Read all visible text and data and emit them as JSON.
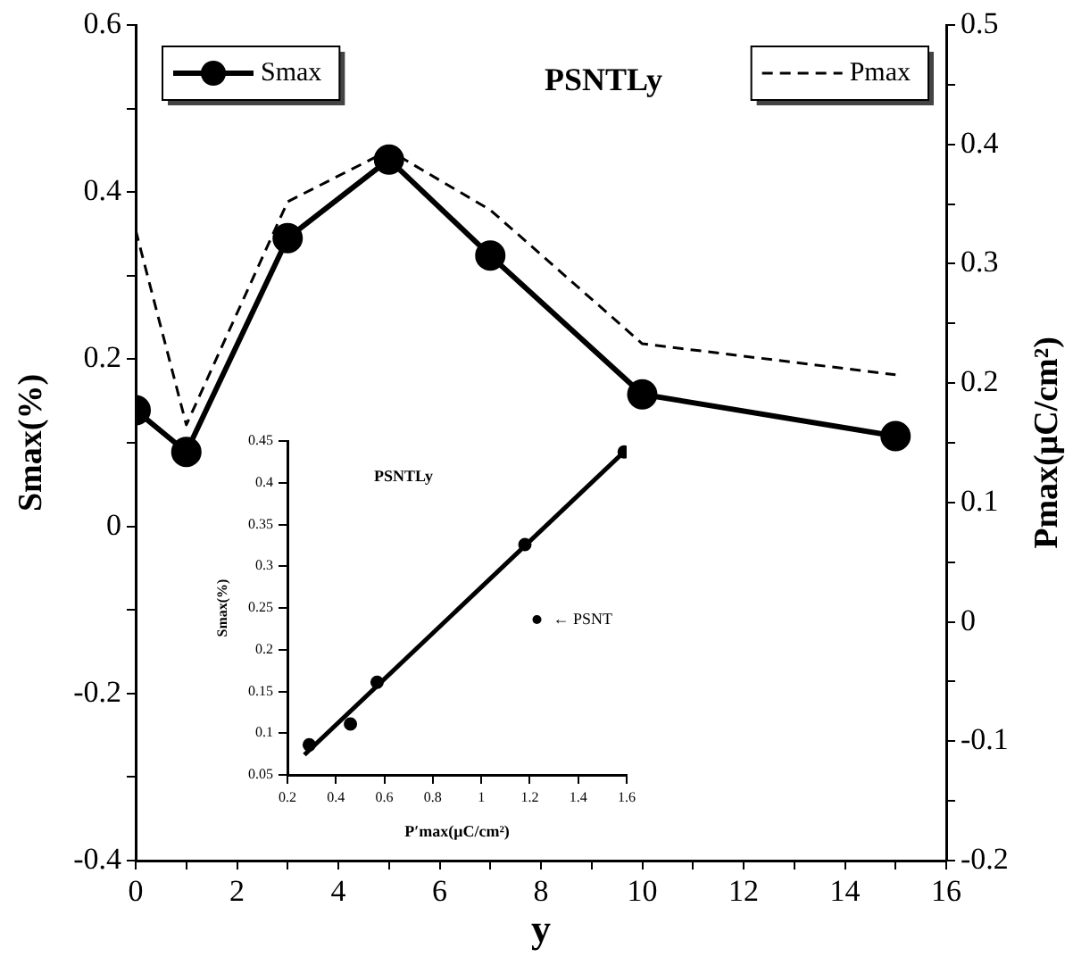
{
  "chart_data": [
    {
      "type": "line",
      "title": "PSNTLy",
      "xlabel": "y",
      "ylabel": "Smax(%)",
      "y2label": "Pmax(μC/cm²)",
      "x": [
        0,
        1,
        3,
        5,
        7,
        10,
        15
      ],
      "series": [
        {
          "name": "Smax",
          "color": "#000000",
          "marker": "circle",
          "line_style": "solid",
          "values": [
            0.139,
            0.089,
            0.345,
            0.439,
            0.324,
            0.158,
            0.108
          ]
        },
        {
          "name": "Pmax",
          "color": "#000000",
          "marker": "none",
          "line_style": "dashed",
          "axis": "y2",
          "values": [
            0.328,
            0.165,
            0.352,
            0.395,
            0.345,
            0.233,
            0.207
          ]
        }
      ],
      "xlim": [
        0,
        16
      ],
      "xticks": [
        0,
        {
          "value": 1,
          "label": null
        },
        2,
        {
          "value": 3,
          "label": null
        },
        4,
        {
          "value": 5,
          "label": null
        },
        6,
        {
          "value": 7,
          "label": null
        },
        8,
        {
          "value": 9,
          "label": null
        },
        10,
        {
          "value": 11,
          "label": null
        },
        12,
        {
          "value": 13,
          "label": null
        },
        14,
        {
          "value": 15,
          "label": null
        },
        16
      ],
      "ylim": [
        -0.4,
        0.6
      ],
      "yticks": [
        -0.4,
        {
          "value": -0.3,
          "label": null
        },
        -0.2,
        {
          "value": -0.1,
          "label": null
        },
        0,
        {
          "value": 0.1,
          "label": null
        },
        0.2,
        {
          "value": 0.3,
          "label": null
        },
        0.4,
        {
          "value": 0.5,
          "label": null
        },
        0.6
      ],
      "y2lim": [
        -0.2,
        0.5
      ],
      "y2ticks": [
        -0.2,
        {
          "value": -0.15,
          "label": null
        },
        -0.1,
        {
          "value": -0.05,
          "label": null
        },
        0,
        {
          "value": 0.05,
          "label": null
        },
        0.1,
        {
          "value": 0.15,
          "label": null
        },
        0.2,
        {
          "value": 0.25,
          "label": null
        },
        0.3,
        {
          "value": 0.35,
          "label": null
        },
        0.4,
        {
          "value": 0.45,
          "label": null
        },
        0.5
      ],
      "grid": false,
      "legend": "top"
    },
    {
      "type": "scatter",
      "title": "PSNTLy",
      "xlabel": "P′max(μC/cm²)",
      "ylabel": "Smax(%)",
      "series": [
        {
          "name": "← PSNT",
          "color": "#000000",
          "marker": "circle",
          "x": [
            0.29,
            0.46,
            0.57,
            1.18,
            1.59
          ],
          "values": [
            0.086,
            0.111,
            0.161,
            0.326,
            0.437
          ]
        },
        {
          "type": "line",
          "color": "#000000",
          "marker": "none",
          "line_style": "solid",
          "x": [
            0.27,
            1.6
          ],
          "values": [
            0.074,
            0.44
          ]
        }
      ],
      "xlim": [
        0.2,
        1.6
      ],
      "xticks": [
        0.2,
        0.4,
        0.6,
        0.8,
        1,
        1.2,
        1.4,
        1.6
      ],
      "ylim": [
        0.05,
        0.45
      ],
      "yticks": [
        0.05,
        0.1,
        0.15,
        0.2,
        0.25,
        0.3,
        0.35,
        0.4,
        0.45
      ],
      "grid": false,
      "legend": "bottom right"
    }
  ]
}
